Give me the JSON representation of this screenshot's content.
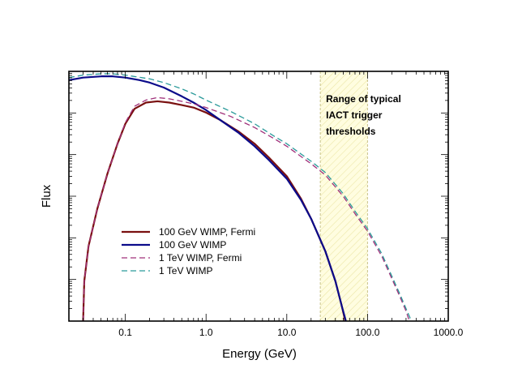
{
  "chart_data": {
    "type": "line",
    "title": "",
    "xlabel": "Energy (GeV)",
    "ylabel": "Flux",
    "xscale": "log",
    "yscale": "log",
    "xlim": [
      0.02,
      1000
    ],
    "ylim": [
      0,
      1
    ],
    "x_tick_labels": [
      "0.1",
      "1.0",
      "10.0",
      "100.0",
      "1000.0"
    ],
    "x_tick_values": [
      0.1,
      1,
      10,
      100,
      1000
    ],
    "grid": false,
    "legend_position": "lower-left",
    "annotation": {
      "text_lines": [
        "Range of typical",
        "IACT trigger",
        "thresholds"
      ],
      "x_range": [
        26,
        100
      ]
    },
    "series": [
      {
        "name": "100 GeV WIMP, Fermi",
        "color": "#7a1010",
        "style": "solid",
        "points": [
          [
            0.03,
            0.0
          ],
          [
            0.031,
            0.16
          ],
          [
            0.035,
            0.3
          ],
          [
            0.045,
            0.45
          ],
          [
            0.06,
            0.59
          ],
          [
            0.08,
            0.71
          ],
          [
            0.1,
            0.79
          ],
          [
            0.13,
            0.85
          ],
          [
            0.18,
            0.875
          ],
          [
            0.25,
            0.88
          ],
          [
            0.35,
            0.875
          ],
          [
            0.5,
            0.865
          ],
          [
            0.7,
            0.855
          ],
          [
            1.0,
            0.835
          ],
          [
            1.5,
            0.805
          ],
          [
            2.5,
            0.76
          ],
          [
            4,
            0.71
          ],
          [
            6,
            0.655
          ],
          [
            10,
            0.58
          ],
          [
            15,
            0.49
          ],
          [
            20,
            0.41
          ],
          [
            30,
            0.28
          ],
          [
            40,
            0.16
          ],
          [
            48,
            0.06
          ],
          [
            53,
            0.0
          ]
        ]
      },
      {
        "name": "100 GeV WIMP",
        "color": "#0b0b8a",
        "style": "solid",
        "points": [
          [
            0.02,
            0.965
          ],
          [
            0.03,
            0.975
          ],
          [
            0.05,
            0.98
          ],
          [
            0.07,
            0.98
          ],
          [
            0.1,
            0.975
          ],
          [
            0.15,
            0.965
          ],
          [
            0.2,
            0.955
          ],
          [
            0.3,
            0.935
          ],
          [
            0.5,
            0.9
          ],
          [
            0.7,
            0.875
          ],
          [
            1.0,
            0.845
          ],
          [
            1.5,
            0.805
          ],
          [
            2.5,
            0.755
          ],
          [
            4,
            0.7
          ],
          [
            6,
            0.645
          ],
          [
            10,
            0.57
          ],
          [
            15,
            0.485
          ],
          [
            20,
            0.41
          ],
          [
            30,
            0.28
          ],
          [
            40,
            0.16
          ],
          [
            48,
            0.06
          ],
          [
            54,
            0.0
          ]
        ]
      },
      {
        "name": "1 TeV WIMP, Fermi",
        "color": "#a0307a",
        "style": "dashed",
        "points": [
          [
            0.03,
            0.0
          ],
          [
            0.031,
            0.16
          ],
          [
            0.035,
            0.3
          ],
          [
            0.045,
            0.45
          ],
          [
            0.06,
            0.59
          ],
          [
            0.08,
            0.71
          ],
          [
            0.1,
            0.795
          ],
          [
            0.13,
            0.86
          ],
          [
            0.18,
            0.885
          ],
          [
            0.25,
            0.895
          ],
          [
            0.35,
            0.89
          ],
          [
            0.5,
            0.88
          ],
          [
            0.7,
            0.87
          ],
          [
            1.0,
            0.855
          ],
          [
            2,
            0.82
          ],
          [
            4,
            0.775
          ],
          [
            7,
            0.73
          ],
          [
            10,
            0.7
          ],
          [
            20,
            0.63
          ],
          [
            30,
            0.585
          ],
          [
            50,
            0.5
          ],
          [
            70,
            0.43
          ],
          [
            100,
            0.36
          ],
          [
            150,
            0.26
          ],
          [
            200,
            0.17
          ],
          [
            250,
            0.1
          ],
          [
            300,
            0.04
          ],
          [
            330,
            0.0
          ]
        ]
      },
      {
        "name": "1 TeV WIMP",
        "color": "#2a9a9a",
        "style": "dashed",
        "points": [
          [
            0.02,
            0.975
          ],
          [
            0.03,
            0.985
          ],
          [
            0.05,
            0.99
          ],
          [
            0.07,
            0.99
          ],
          [
            0.1,
            0.985
          ],
          [
            0.2,
            0.97
          ],
          [
            0.3,
            0.955
          ],
          [
            0.5,
            0.93
          ],
          [
            0.7,
            0.91
          ],
          [
            1.0,
            0.885
          ],
          [
            2,
            0.84
          ],
          [
            4,
            0.79
          ],
          [
            7,
            0.74
          ],
          [
            10,
            0.71
          ],
          [
            20,
            0.64
          ],
          [
            30,
            0.595
          ],
          [
            50,
            0.51
          ],
          [
            70,
            0.44
          ],
          [
            100,
            0.37
          ],
          [
            150,
            0.27
          ],
          [
            200,
            0.18
          ],
          [
            250,
            0.11
          ],
          [
            300,
            0.05
          ],
          [
            350,
            0.0
          ]
        ]
      }
    ]
  }
}
